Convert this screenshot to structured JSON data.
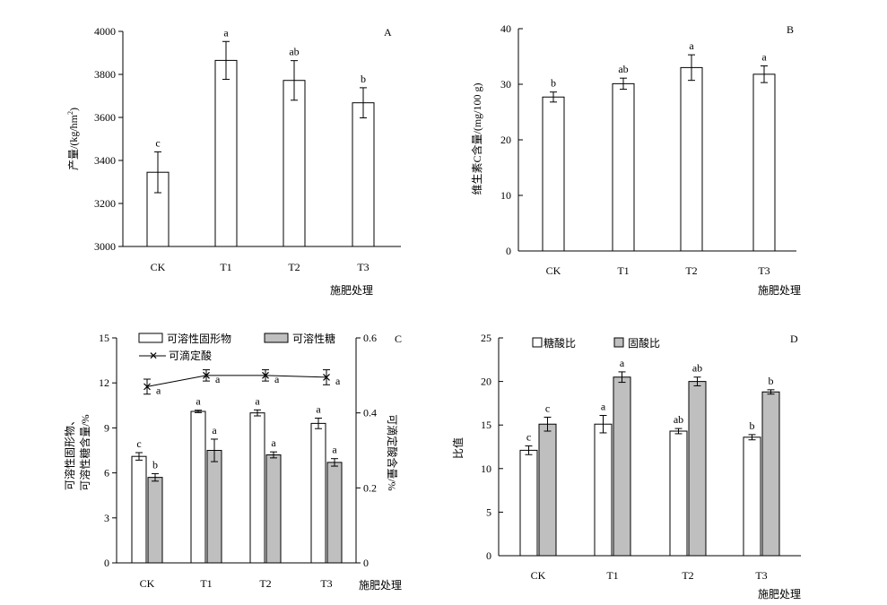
{
  "charts": [
    {
      "id": "A",
      "type": "bar",
      "panel_label": "A",
      "xlabel": "施肥处理",
      "ylabel_main": "产量/(kg/hm",
      "ylabel_sup": "2",
      "ylabel_end": ")",
      "categories": [
        "CK",
        "T1",
        "T2",
        "T3"
      ],
      "ylim": [
        3000,
        4000
      ],
      "yticks": [
        "3000",
        "3200",
        "3400",
        "3600",
        "3800",
        "4000"
      ],
      "series": [
        {
          "values": [
            3345,
            3865,
            3772,
            3668
          ],
          "errors": [
            95,
            88,
            92,
            70
          ],
          "letters": [
            "c",
            "a",
            "ab",
            "b"
          ],
          "fill": "#ffffff"
        }
      ]
    },
    {
      "id": "B",
      "type": "bar",
      "panel_label": "B",
      "xlabel": "施肥处理",
      "ylabel": "维生素C含量/(mg/100 g)",
      "categories": [
        "CK",
        "T1",
        "T2",
        "T3"
      ],
      "ylim": [
        0,
        40
      ],
      "yticks": [
        "0",
        "10",
        "20",
        "30",
        "40"
      ],
      "series": [
        {
          "values": [
            27.7,
            30.1,
            33.0,
            31.8
          ],
          "errors": [
            0.9,
            1.0,
            2.3,
            1.5
          ],
          "letters": [
            "b",
            "ab",
            "a",
            "a"
          ],
          "fill": "#ffffff"
        }
      ]
    },
    {
      "id": "C",
      "type": "bar+line",
      "panel_label": "C",
      "xlabel": "施肥处理",
      "ylabel_line1": "可溶性固形物、",
      "ylabel_line2": "可溶性糖含量/%",
      "y2label": "可滴定酸含量/%",
      "categories": [
        "CK",
        "T1",
        "T2",
        "T3"
      ],
      "ylim": [
        0,
        15
      ],
      "yticks": [
        "0",
        "3",
        "6",
        "9",
        "12",
        "15"
      ],
      "y2lim": [
        0,
        0.6
      ],
      "y2ticks": [
        "0",
        "0.2",
        "0.4",
        "0.6"
      ],
      "legend": {
        "placement": "top-left",
        "bar1": "可溶性固形物",
        "bar2": "可溶性糖",
        "line": "可滴定酸"
      },
      "series": [
        {
          "name": "可溶性固形物",
          "values": [
            7.1,
            10.1,
            10.0,
            9.3
          ],
          "errors": [
            0.25,
            0.08,
            0.2,
            0.35
          ],
          "letters": [
            "c",
            "a",
            "a",
            "a"
          ],
          "fill": "#ffffff"
        },
        {
          "name": "可溶性糖",
          "values": [
            5.7,
            7.5,
            7.2,
            6.7
          ],
          "errors": [
            0.25,
            0.75,
            0.2,
            0.25
          ],
          "letters": [
            "b",
            "a",
            "a",
            "a"
          ],
          "fill": "#bfbfbf"
        }
      ],
      "line_series": {
        "name": "可滴定酸",
        "values": [
          0.47,
          0.5,
          0.5,
          0.495
        ],
        "errors": [
          0.02,
          0.015,
          0.015,
          0.02
        ],
        "letters": [
          "a",
          "a",
          "a",
          "a"
        ]
      }
    },
    {
      "id": "D",
      "type": "bar",
      "panel_label": "D",
      "xlabel": "施肥处理",
      "ylabel": "比值",
      "categories": [
        "CK",
        "T1",
        "T2",
        "T3"
      ],
      "ylim": [
        0,
        25
      ],
      "yticks": [
        "0",
        "5",
        "10",
        "15",
        "20",
        "25"
      ],
      "legend": {
        "placement": "top-left",
        "bar1": "糖酸比",
        "bar2": "固酸比"
      },
      "series": [
        {
          "name": "糖酸比",
          "values": [
            12.1,
            15.1,
            14.3,
            13.6
          ],
          "errors": [
            0.5,
            1.0,
            0.3,
            0.3
          ],
          "letters": [
            "c",
            "a",
            "ab",
            "b"
          ],
          "fill": "#ffffff"
        },
        {
          "name": "固酸比",
          "values": [
            15.1,
            20.5,
            20.0,
            18.8
          ],
          "errors": [
            0.8,
            0.6,
            0.5,
            0.25
          ],
          "letters": [
            "c",
            "a",
            "ab",
            "b"
          ],
          "fill": "#bfbfbf"
        }
      ]
    }
  ]
}
